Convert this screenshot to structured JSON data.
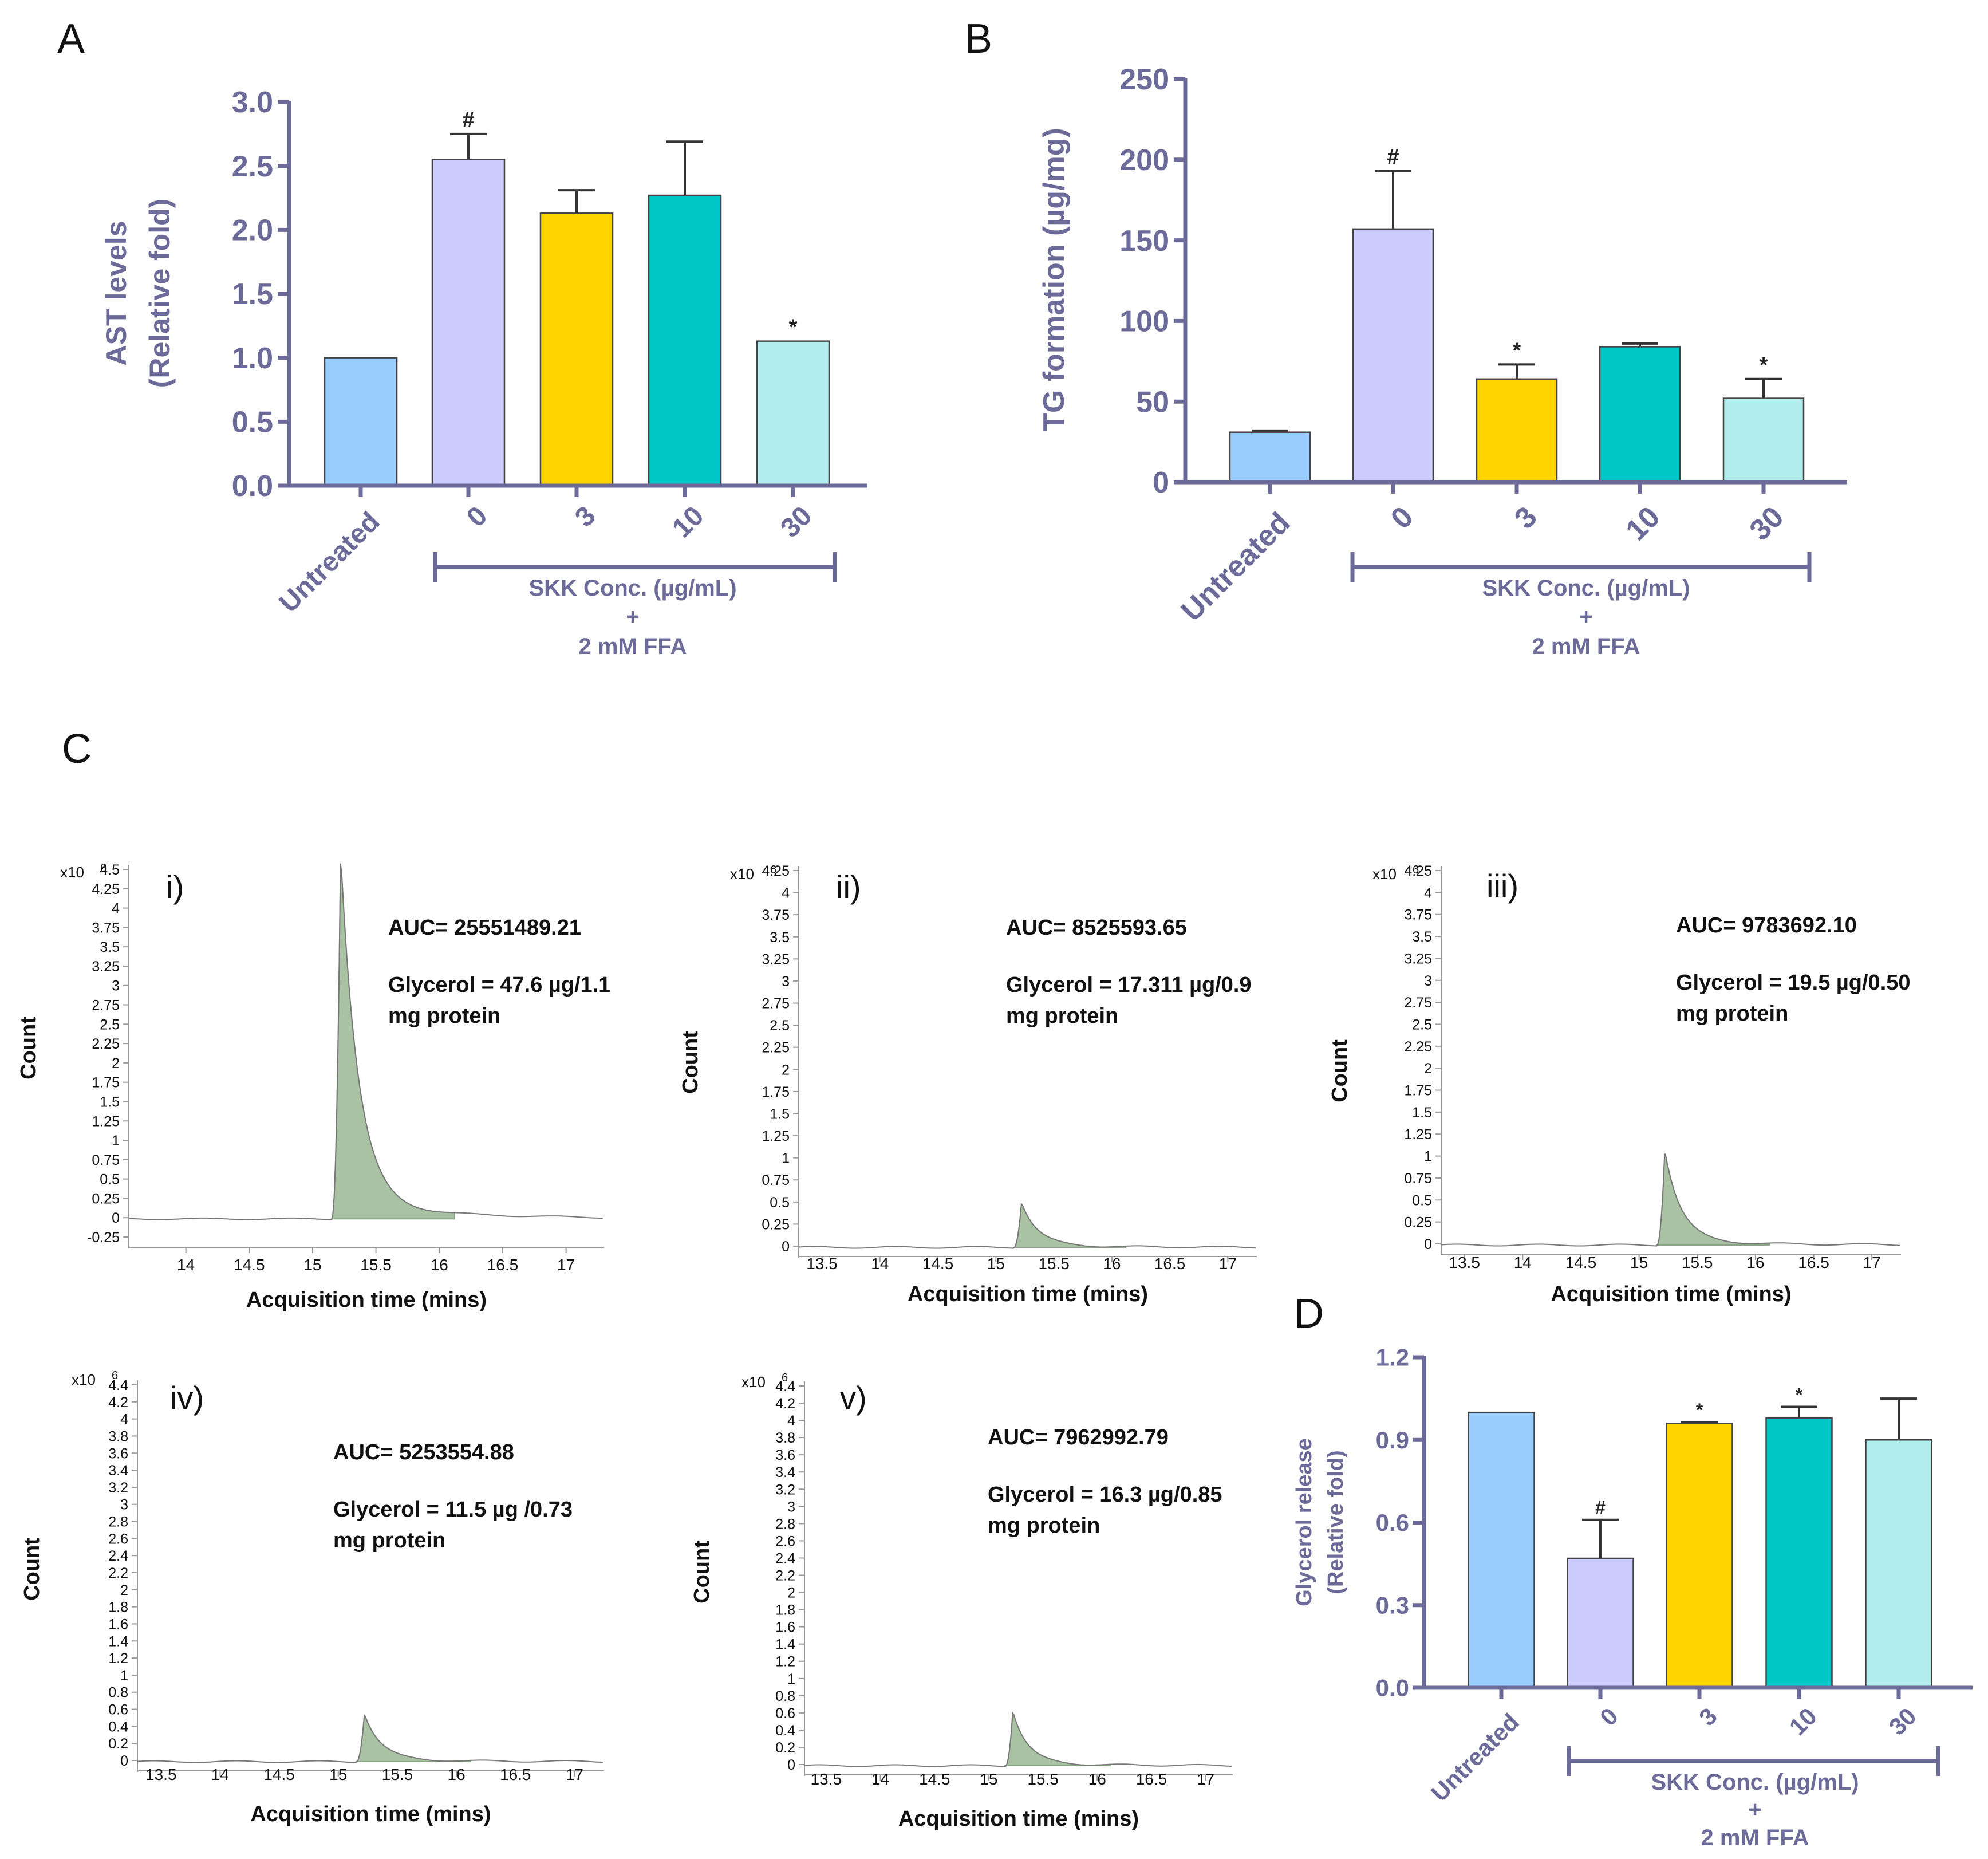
{
  "colors": {
    "axis": "#6b6a99",
    "untreated": "#99ccff",
    "ffa0": "#ccccff",
    "skk3": "#ffd500",
    "skk10": "#00c8c8",
    "skk30": "#b3ecec",
    "peak_fill": "#a9c2a4",
    "peak_line": "#8aa585",
    "trace": "#777777"
  },
  "panels": {
    "A": {
      "letter": "A"
    },
    "B": {
      "letter": "B"
    },
    "C": {
      "letter": "C"
    },
    "D": {
      "letter": "D"
    }
  },
  "chart_data": [
    {
      "id": "A",
      "type": "bar",
      "ylabel_line1": "AST levels",
      "ylabel_line2": "(Relative fold)",
      "categories": [
        "Untreated",
        "0",
        "3",
        "10",
        "30"
      ],
      "values": [
        1.0,
        2.55,
        2.13,
        2.27,
        1.13
      ],
      "errors": [
        0,
        0.2,
        0.18,
        0.42,
        0
      ],
      "sig": [
        "",
        "#",
        "",
        "",
        "*"
      ],
      "ylim": [
        0,
        3.0
      ],
      "yticks": [
        "0.0",
        "0.5",
        "1.0",
        "1.5",
        "2.0",
        "2.5",
        "3.0"
      ],
      "bracket_line1": "SKK Conc. (µg/mL)",
      "bracket_line2": "+",
      "bracket_line3": "2 mM FFA"
    },
    {
      "id": "B",
      "type": "bar",
      "ylabel_line1": "TG formation (µg/mg)",
      "categories": [
        "Untreated",
        "0",
        "3",
        "10",
        "30"
      ],
      "values": [
        31,
        157,
        64,
        84,
        52
      ],
      "errors": [
        1,
        36,
        9,
        2,
        12
      ],
      "sig": [
        "",
        "#",
        "*",
        "",
        "*"
      ],
      "ylim": [
        0,
        250
      ],
      "yticks": [
        "0",
        "50",
        "100",
        "150",
        "200",
        "250"
      ],
      "bracket_line1": "SKK Conc. (µg/mL)",
      "bracket_line2": "+",
      "bracket_line3": "2 mM FFA"
    },
    {
      "id": "D",
      "type": "bar",
      "ylabel_line1": "Glycerol release",
      "ylabel_line2": "(Relative fold)",
      "categories": [
        "Untreated",
        "0",
        "3",
        "10",
        "30"
      ],
      "values": [
        1.0,
        0.47,
        0.96,
        0.98,
        0.9
      ],
      "errors": [
        0,
        0.14,
        0.005,
        0.04,
        0.15
      ],
      "sig": [
        "",
        "#",
        "*",
        "*",
        ""
      ],
      "ylim": [
        0,
        1.2
      ],
      "yticks": [
        "0.0",
        "0.3",
        "0.6",
        "0.9",
        "1.2"
      ],
      "bracket_line1": "SKK Conc. (µg/mL)",
      "bracket_line2": "+",
      "bracket_line3": "2 mM FFA"
    }
  ],
  "chromatograms": [
    {
      "id": "i",
      "label": "i)",
      "multiplier": "x10",
      "exponent": "6",
      "ylabel": "Count",
      "xlabel": "Acquisition time (mins)",
      "auc": "AUC= 25551489.21",
      "glycerol_line1": "Glycerol = 47.6 µg/1.1",
      "glycerol_line2": "mg protein",
      "yticks": [
        "-0.25",
        "0",
        "0.25",
        "0.5",
        "0.75",
        "1",
        "1.25",
        "1.5",
        "1.75",
        "2",
        "2.25",
        "2.5",
        "2.75",
        "3",
        "3.25",
        "3.5",
        "3.75",
        "4",
        "4.25",
        "4.5"
      ],
      "xticks": [
        "14",
        "14.5",
        "15",
        "15.5",
        "16",
        "16.5",
        "17"
      ],
      "peak_height": 4.6
    },
    {
      "id": "ii",
      "label": "ii)",
      "multiplier": "x10",
      "exponent": "6",
      "ylabel": "Count",
      "xlabel": "Acquisition time (mins)",
      "auc": "AUC= 8525593.65",
      "glycerol_line1": "Glycerol = 17.311 µg/0.9",
      "glycerol_line2": "mg protein",
      "yticks": [
        "0",
        "0.25",
        "0.5",
        "0.75",
        "1",
        "1.25",
        "1.5",
        "1.75",
        "2",
        "2.25",
        "2.5",
        "2.75",
        "3",
        "3.25",
        "3.5",
        "3.75",
        "4",
        "4.25"
      ],
      "xticks": [
        "13.5",
        "14",
        "14.5",
        "15",
        "15.5",
        "16",
        "16.5",
        "17"
      ],
      "peak_height": 0.5
    },
    {
      "id": "iii",
      "label": "iii)",
      "multiplier": "x10",
      "exponent": "6",
      "ylabel": "Count",
      "xlabel": "Acquisition time (mins)",
      "auc": "AUC= 9783692.10",
      "glycerol_line1": "Glycerol = 19.5 µg/0.50",
      "glycerol_line2": "mg protein",
      "yticks": [
        "0",
        "0.25",
        "0.5",
        "0.75",
        "1",
        "1.25",
        "1.5",
        "1.75",
        "2",
        "2.25",
        "2.5",
        "2.75",
        "3",
        "3.25",
        "3.5",
        "3.75",
        "4",
        "4.25"
      ],
      "xticks": [
        "13.5",
        "14",
        "14.5",
        "15",
        "15.5",
        "16",
        "16.5",
        "17"
      ],
      "peak_height": 1.05
    },
    {
      "id": "iv",
      "label": "iv)",
      "multiplier": "x10",
      "exponent": "6",
      "ylabel": "Count",
      "xlabel": "Acquisition time (mins)",
      "auc": "AUC= 5253554.88",
      "glycerol_line1": "Glycerol = 11.5 µg /0.73",
      "glycerol_line2": "mg protein",
      "yticks": [
        "0",
        "0.2",
        "0.4",
        "0.6",
        "0.8",
        "1",
        "1.2",
        "1.4",
        "1.6",
        "1.8",
        "2",
        "2.2",
        "2.4",
        "2.6",
        "2.8",
        "3",
        "3.2",
        "3.4",
        "3.6",
        "3.8",
        "4",
        "4.2",
        "4.4"
      ],
      "xticks": [
        "13.5",
        "14",
        "14.5",
        "15",
        "15.5",
        "16",
        "16.5",
        "17"
      ],
      "peak_height": 0.55
    },
    {
      "id": "v",
      "label": "v)",
      "multiplier": "x10",
      "exponent": "6",
      "ylabel": "Count",
      "xlabel": "Acquisition time (mins)",
      "auc": "AUC= 7962992.79",
      "glycerol_line1": "Glycerol = 16.3 µg/0.85",
      "glycerol_line2": "mg protein",
      "yticks": [
        "0",
        "0.2",
        "0.4",
        "0.6",
        "0.8",
        "1",
        "1.2",
        "1.4",
        "1.6",
        "1.8",
        "2",
        "2.2",
        "2.4",
        "2.6",
        "2.8",
        "3",
        "3.2",
        "3.4",
        "3.6",
        "3.8",
        "4",
        "4.2",
        "4.4"
      ],
      "xticks": [
        "13.5",
        "14",
        "14.5",
        "15",
        "15.5",
        "16",
        "16.5",
        "17"
      ],
      "peak_height": 0.62
    }
  ]
}
